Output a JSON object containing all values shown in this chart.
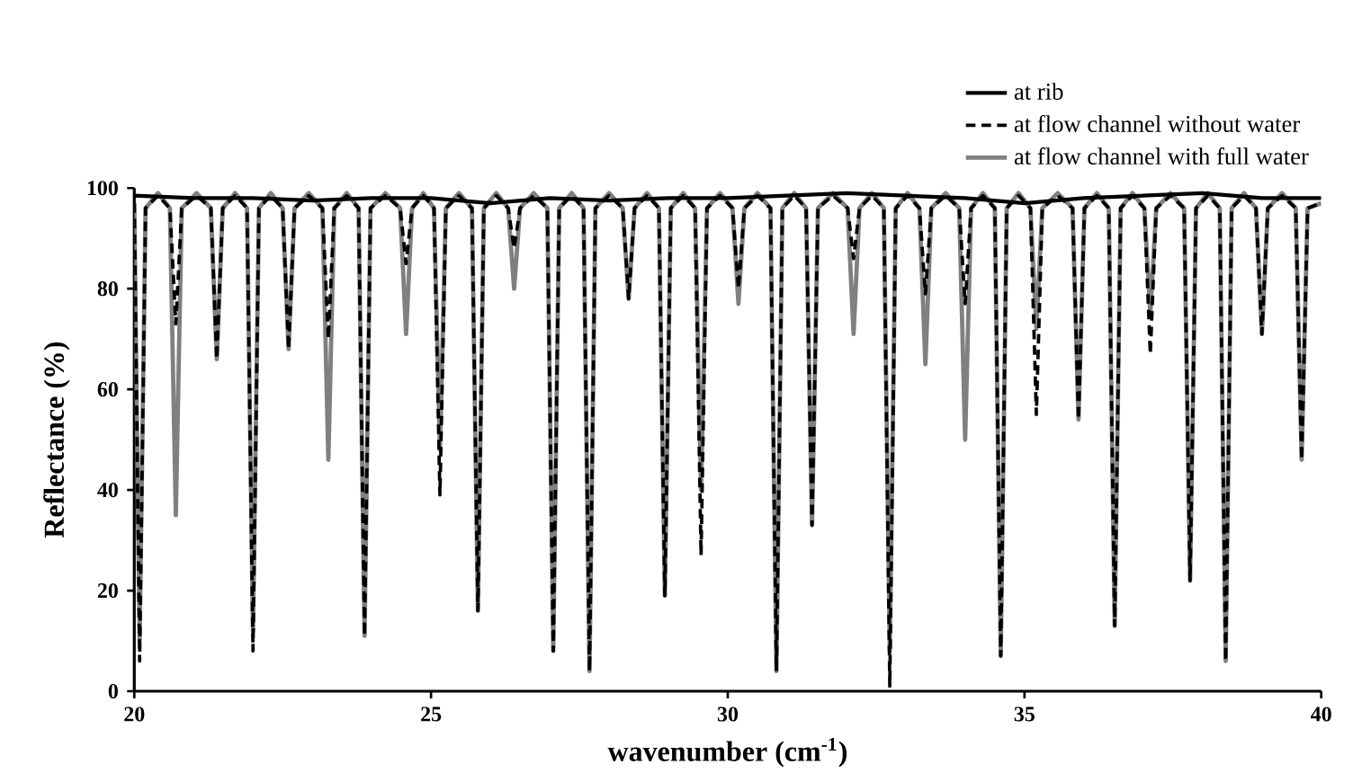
{
  "chart_data": {
    "type": "line",
    "xlabel": "wavenumber (cm$^{-1}$)",
    "ylabel": "Reflectance (%)",
    "xlim": [
      20,
      40
    ],
    "xticks": [
      20,
      25,
      30,
      35,
      40
    ],
    "ylim": [
      0,
      100
    ],
    "yticks": [
      0,
      20,
      40,
      60,
      80,
      100
    ],
    "legend": "top right",
    "x": [
      20.0,
      20.09,
      20.19,
      20.4,
      20.6,
      20.7,
      20.8,
      21.05,
      21.29,
      21.39,
      21.49,
      21.7,
      21.9,
      22.0,
      22.1,
      22.3,
      22.5,
      22.6,
      22.7,
      22.94,
      23.17,
      23.27,
      23.37,
      23.58,
      23.78,
      23.88,
      23.98,
      24.23,
      24.48,
      24.58,
      24.68,
      24.87,
      25.05,
      25.15,
      25.25,
      25.47,
      25.69,
      25.79,
      25.89,
      26.1,
      26.3,
      26.4,
      26.5,
      26.73,
      26.96,
      27.06,
      27.16,
      27.37,
      27.57,
      27.67,
      27.77,
      28.0,
      28.23,
      28.33,
      28.43,
      28.64,
      28.84,
      28.94,
      29.04,
      29.25,
      29.45,
      29.55,
      29.65,
      29.87,
      30.08,
      30.18,
      30.28,
      30.5,
      30.72,
      30.82,
      30.92,
      31.12,
      31.32,
      31.42,
      31.52,
      31.77,
      32.02,
      32.12,
      32.22,
      32.43,
      32.63,
      32.73,
      32.83,
      33.03,
      33.23,
      33.33,
      33.43,
      33.67,
      33.9,
      34.0,
      34.1,
      34.3,
      34.5,
      34.6,
      34.7,
      34.9,
      35.1,
      35.2,
      35.3,
      35.56,
      35.81,
      35.91,
      36.01,
      36.22,
      36.42,
      36.52,
      36.62,
      36.82,
      37.02,
      37.12,
      37.22,
      37.46,
      37.69,
      37.79,
      37.89,
      38.09,
      38.29,
      38.39,
      38.49,
      38.7,
      38.9,
      39.0,
      39.1,
      39.34,
      39.57,
      39.67,
      39.77,
      40.0
    ],
    "series": [
      {
        "name": "at rib",
        "color": "#000000",
        "line_style": "solid",
        "x": [
          20,
          21,
          22,
          23,
          24,
          25,
          26,
          27,
          28,
          29,
          30,
          31,
          32,
          33,
          34,
          35,
          36,
          37,
          38,
          39,
          40
        ],
        "values": [
          98.5,
          98,
          98,
          97.5,
          98,
          98,
          97,
          98,
          97.5,
          98,
          98,
          98.5,
          99,
          98.5,
          98,
          97,
          98,
          98.5,
          99,
          98,
          98
        ]
      },
      {
        "name": "at flow channel without water",
        "color": "#000000",
        "line_style": "dashed",
        "values": [
          97,
          6,
          96,
          98.5,
          96,
          73,
          96,
          98.5,
          96,
          66,
          96,
          98.5,
          96,
          8,
          96,
          98.5,
          96,
          68,
          96,
          98.5,
          96,
          70,
          96,
          98.5,
          96,
          11,
          96,
          98.5,
          96,
          85,
          96,
          98.5,
          96,
          39,
          96,
          98.5,
          96,
          16,
          96,
          98.5,
          96,
          88,
          96,
          98.5,
          96,
          8,
          96,
          98.5,
          96,
          4,
          96,
          98.5,
          96,
          78,
          96,
          98.5,
          96,
          19,
          96,
          98.5,
          96,
          27,
          96,
          98.5,
          96,
          80,
          96,
          98.5,
          96,
          4,
          96,
          98.5,
          96,
          33,
          96,
          98.5,
          96,
          86,
          96,
          98.5,
          96,
          1,
          96,
          98.5,
          96,
          79,
          96,
          98.5,
          96,
          77,
          96,
          98.5,
          96,
          7,
          96,
          98.5,
          96,
          55,
          96,
          98.5,
          96,
          54,
          96,
          98.5,
          96,
          13,
          96,
          98.5,
          96,
          67,
          96,
          98.5,
          96,
          22,
          96,
          98.5,
          96,
          6,
          96,
          98.5,
          96,
          71,
          96,
          98.5,
          96,
          46,
          96,
          97
        ]
      },
      {
        "name": "at flow channel with full water",
        "color": "#808080",
        "line_style": "solid",
        "values": [
          97,
          10,
          96,
          99,
          96,
          35,
          96,
          99,
          96,
          66,
          96,
          99,
          96,
          12,
          96,
          99,
          96,
          68,
          96,
          99,
          96,
          46,
          96,
          99,
          96,
          11,
          96,
          99,
          96,
          71,
          96,
          99,
          96,
          48,
          96,
          99,
          96,
          16,
          96,
          99,
          96,
          80,
          96,
          99,
          96,
          8,
          96,
          99,
          96,
          4,
          96,
          99,
          96,
          78,
          96,
          99,
          96,
          19,
          96,
          99,
          96,
          40,
          96,
          99,
          96,
          77,
          96,
          99,
          96,
          4,
          96,
          99,
          96,
          33,
          96,
          99,
          96,
          71,
          96,
          99,
          96,
          8,
          96,
          99,
          96,
          65,
          96,
          99,
          96,
          50,
          96,
          99,
          96,
          7,
          96,
          99,
          96,
          72,
          96,
          99,
          96,
          54,
          96,
          99,
          96,
          13,
          96,
          99,
          96,
          75,
          96,
          99,
          96,
          22,
          96,
          99,
          96,
          6,
          96,
          99,
          96,
          71,
          96,
          99,
          96,
          46,
          96,
          97
        ]
      }
    ]
  }
}
